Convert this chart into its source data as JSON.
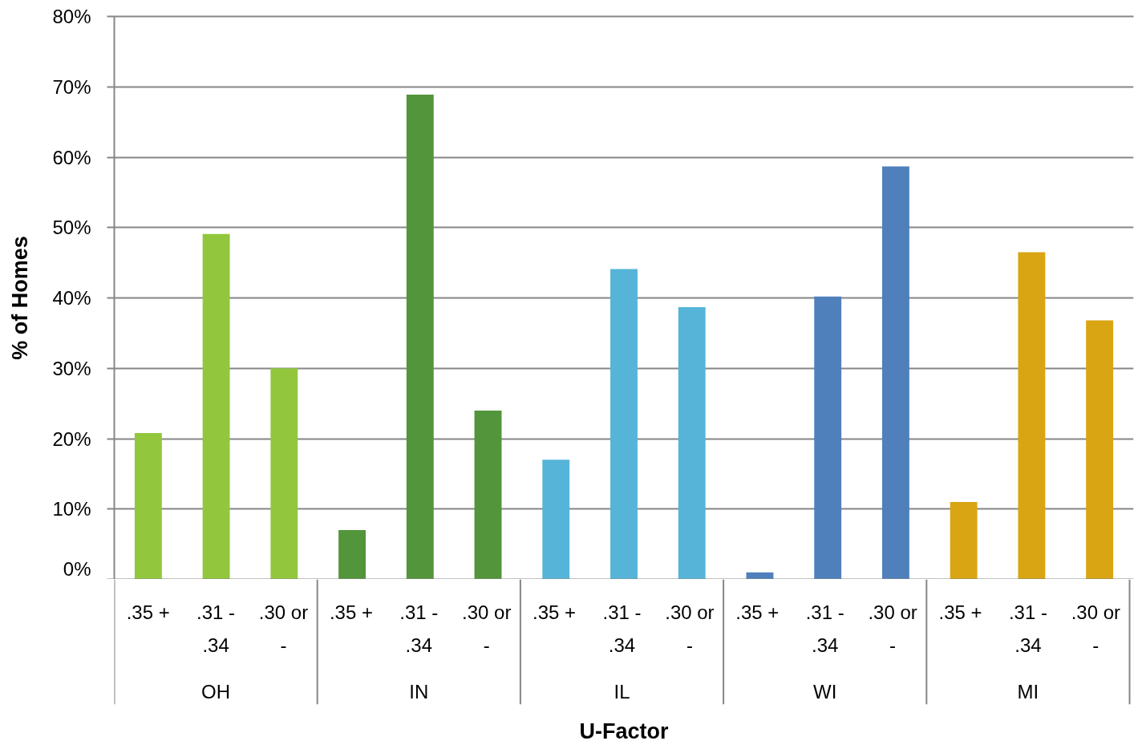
{
  "chart_data": {
    "type": "bar",
    "xlabel": "U-Factor",
    "ylabel": "% of Homes",
    "categories": [
      "OH",
      "IN",
      "IL",
      "WI",
      "MI"
    ],
    "series": [
      {
        "name": ".35 +",
        "colors": [
          "#92c73d",
          "#52953a",
          "#56b4d9",
          "#4f80bc",
          "#d9a512"
        ],
        "values": [
          20.8,
          7.0,
          17.0,
          1.0,
          11.0
        ]
      },
      {
        "name": ".31 - .34",
        "colors": [
          "#92c73d",
          "#52953a",
          "#56b4d9",
          "#4f80bc",
          "#d9a512"
        ],
        "values": [
          49.1,
          68.9,
          44.1,
          40.2,
          46.5
        ]
      },
      {
        "name": ".30 or -",
        "colors": [
          "#92c73d",
          "#52953a",
          "#56b4d9",
          "#4f80bc",
          "#d9a512"
        ],
        "values": [
          30.0,
          24.0,
          38.7,
          58.7,
          36.8
        ]
      }
    ],
    "ylim": [
      0,
      80
    ],
    "yticks": [
      {
        "value": 0,
        "label": "0%"
      },
      {
        "value": 10,
        "label": "10%"
      },
      {
        "value": 20,
        "label": "20%"
      },
      {
        "value": 30,
        "label": "30%"
      },
      {
        "value": 40,
        "label": "40%"
      },
      {
        "value": 50,
        "label": "50%"
      },
      {
        "value": 60,
        "label": "60%"
      },
      {
        "value": 70,
        "label": "70%"
      },
      {
        "value": 80,
        "label": "80%"
      }
    ],
    "grid": "y"
  }
}
